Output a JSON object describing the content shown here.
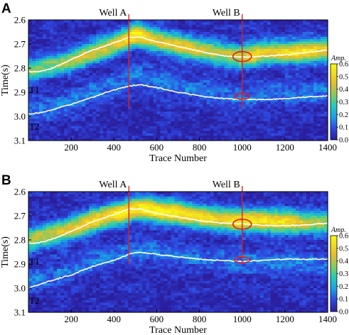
{
  "chart_data": [
    {
      "type": "heatmap",
      "panel_label": "A",
      "xlabel": "Trace Number",
      "ylabel": "Time(s)",
      "xlim": [
        0,
        1400
      ],
      "ylim": [
        2.6,
        3.1
      ],
      "y_inverted": true,
      "x_ticks": [
        200,
        400,
        600,
        800,
        1000,
        1200,
        1400
      ],
      "y_ticks": [
        "2.6",
        "2.7",
        "2.8",
        "2.9",
        "3.0",
        "3.1"
      ],
      "colorbar": {
        "title": "Amp.",
        "range": [
          0,
          0.6
        ],
        "ticks": [
          "0.6",
          "0.5",
          "0.4",
          "0.3",
          "0.2",
          "0.1",
          "0.0"
        ]
      },
      "wells": [
        {
          "name": "Well A",
          "trace": 470
        },
        {
          "name": "Well B",
          "trace": 1000
        }
      ],
      "horizons": [
        {
          "name": "T1",
          "x": [
            0,
            50,
            100,
            200,
            300,
            400,
            470,
            520,
            600,
            700,
            800,
            900,
            1000,
            1100,
            1200,
            1300,
            1400
          ],
          "y": [
            2.815,
            2.815,
            2.805,
            2.765,
            2.725,
            2.695,
            2.672,
            2.672,
            2.69,
            2.71,
            2.73,
            2.748,
            2.755,
            2.75,
            2.745,
            2.735,
            2.725
          ]
        },
        {
          "name": "T2",
          "x": [
            0,
            50,
            100,
            200,
            300,
            400,
            470,
            520,
            600,
            700,
            800,
            900,
            1000,
            1100,
            1200,
            1300,
            1400
          ],
          "y": [
            2.99,
            2.985,
            2.975,
            2.95,
            2.92,
            2.89,
            2.875,
            2.868,
            2.88,
            2.9,
            2.915,
            2.925,
            2.93,
            2.93,
            2.927,
            2.92,
            2.915
          ]
        }
      ],
      "anomalies": [
        {
          "trace": 1000,
          "time": 2.752
        },
        {
          "trace": 1000,
          "time": 2.917
        }
      ],
      "amplitude_band": {
        "x": [
          0,
          100,
          200,
          300,
          400,
          450,
          500,
          550,
          600,
          700,
          800,
          900,
          1000,
          1050,
          1100,
          1200,
          1300,
          1400
        ],
        "center": [
          2.815,
          2.79,
          2.77,
          2.735,
          2.705,
          2.685,
          2.66,
          2.67,
          2.685,
          2.705,
          2.725,
          2.74,
          2.752,
          2.745,
          2.735,
          2.735,
          2.73,
          2.725
        ],
        "peak_amp": [
          0.32,
          0.33,
          0.36,
          0.4,
          0.42,
          0.45,
          0.58,
          0.5,
          0.44,
          0.48,
          0.4,
          0.38,
          0.42,
          0.5,
          0.42,
          0.48,
          0.52,
          0.48
        ]
      }
    },
    {
      "type": "heatmap",
      "panel_label": "B",
      "xlabel": "Trace Number",
      "ylabel": "Time(s)",
      "xlim": [
        0,
        1400
      ],
      "ylim": [
        2.6,
        3.1
      ],
      "y_inverted": true,
      "x_ticks": [
        200,
        400,
        600,
        800,
        1000,
        1200,
        1400
      ],
      "y_ticks": [
        "2.6",
        "2.7",
        "2.8",
        "2.9",
        "3.0",
        "3.1"
      ],
      "colorbar": {
        "title": "Amp.",
        "range": [
          0,
          0.6
        ],
        "ticks": [
          "0.6",
          "0.5",
          "0.4",
          "0.3",
          "0.2",
          "0.1",
          "0.0"
        ]
      },
      "wells": [
        {
          "name": "Well A",
          "trace": 470
        },
        {
          "name": "Well B",
          "trace": 1000
        }
      ],
      "horizons": [
        {
          "name": "T1",
          "x": [
            0,
            50,
            100,
            200,
            300,
            400,
            470,
            520,
            600,
            700,
            800,
            900,
            1000,
            1100,
            1200,
            1300,
            1400
          ],
          "y": [
            2.815,
            2.812,
            2.8,
            2.765,
            2.725,
            2.695,
            2.672,
            2.672,
            2.69,
            2.705,
            2.72,
            2.73,
            2.733,
            2.74,
            2.742,
            2.738,
            2.73
          ]
        },
        {
          "name": "T2",
          "x": [
            0,
            50,
            100,
            200,
            300,
            400,
            470,
            520,
            600,
            700,
            800,
            900,
            1000,
            1100,
            1200,
            1300,
            1400
          ],
          "y": [
            3.0,
            2.985,
            2.97,
            2.945,
            2.91,
            2.885,
            2.86,
            2.85,
            2.86,
            2.87,
            2.88,
            2.885,
            2.89,
            2.885,
            2.88,
            2.88,
            2.88
          ]
        }
      ],
      "anomalies": [
        {
          "trace": 1000,
          "time": 2.735
        },
        {
          "trace": 1000,
          "time": 2.883
        }
      ],
      "amplitude_band": {
        "x": [
          0,
          100,
          200,
          300,
          400,
          450,
          500,
          550,
          600,
          700,
          800,
          900,
          1000,
          1050,
          1100,
          1200,
          1300,
          1400
        ],
        "center": [
          2.8,
          2.78,
          2.755,
          2.72,
          2.695,
          2.685,
          2.67,
          2.67,
          2.68,
          2.69,
          2.705,
          2.715,
          2.72,
          2.72,
          2.72,
          2.725,
          2.73,
          2.73
        ],
        "peak_amp": [
          0.35,
          0.4,
          0.45,
          0.5,
          0.52,
          0.55,
          0.56,
          0.58,
          0.56,
          0.56,
          0.5,
          0.48,
          0.54,
          0.55,
          0.55,
          0.52,
          0.4,
          0.35
        ]
      }
    }
  ]
}
